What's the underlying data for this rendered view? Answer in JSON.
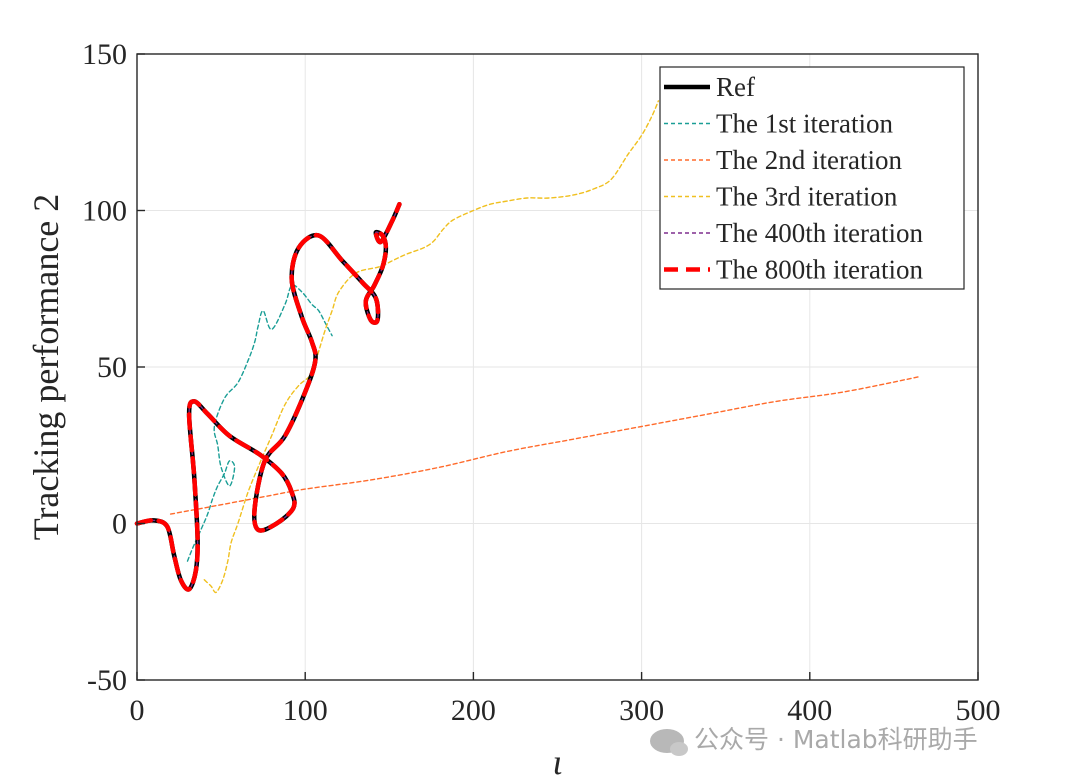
{
  "chart_data": {
    "type": "line",
    "title": "",
    "xlabel": "ι",
    "ylabel": "Tracking performance 2",
    "xlim": [
      0,
      500
    ],
    "ylim": [
      -50,
      150
    ],
    "xticks": [
      "0",
      "100",
      "200",
      "300",
      "400",
      "500"
    ],
    "yticks": [
      "-50",
      "0",
      "50",
      "100",
      "150"
    ],
    "grid": true,
    "legend_position": "top-right",
    "series": [
      {
        "name": "Ref",
        "color": "#000000",
        "style": "solid",
        "x": [
          0,
          10,
          18,
          22,
          26,
          31,
          35,
          36,
          34,
          31,
          34,
          42,
          55,
          73,
          86,
          92,
          93,
          83,
          72,
          70,
          76,
          88,
          100,
          106,
          104,
          98,
          92,
          96,
          108,
          122,
          134,
          142,
          143,
          139,
          136,
          141,
          146,
          148,
          146,
          142,
          145,
          152,
          156
        ],
        "y": [
          0,
          1,
          -1,
          -10,
          -18,
          -21,
          -15,
          -5,
          15,
          35,
          39,
          35,
          28,
          22,
          16,
          10,
          5,
          0,
          -2,
          5,
          20,
          28,
          42,
          52,
          58,
          66,
          78,
          88,
          92,
          84,
          77,
          72,
          65,
          65,
          71,
          76,
          82,
          88,
          92,
          93,
          90,
          97,
          102
        ]
      },
      {
        "name": "The 1st iteration",
        "color": "#1a9e96",
        "style": "dotted",
        "x": [
          30,
          33,
          38,
          42,
          45,
          48,
          52,
          55,
          58,
          55,
          50,
          48,
          46,
          52,
          60,
          66,
          70,
          72,
          75,
          80,
          88,
          92,
          98,
          104,
          108,
          112,
          116
        ],
        "y": [
          -12,
          -8,
          -2,
          3,
          8,
          12,
          16,
          20,
          18,
          12,
          18,
          25,
          31,
          40,
          45,
          52,
          58,
          63,
          68,
          62,
          70,
          76,
          74,
          70,
          68,
          64,
          60
        ]
      },
      {
        "name": "The 2nd iteration",
        "color": "#ff6a2b",
        "style": "dotted",
        "x": [
          20,
          40,
          60,
          80,
          100,
          140,
          180,
          220,
          260,
          300,
          340,
          380,
          420,
          466
        ],
        "y": [
          3,
          5,
          7,
          9,
          11,
          14,
          18,
          23,
          27,
          31,
          35,
          39,
          42,
          47
        ]
      },
      {
        "name": "The 3rd iteration",
        "color": "#f0c020",
        "style": "dotted",
        "x": [
          40,
          44,
          47,
          51,
          54,
          56,
          60,
          66,
          72,
          80,
          88,
          96,
          104,
          108,
          112,
          116,
          120,
          130,
          144,
          152,
          160,
          170,
          176,
          182,
          188,
          200,
          210,
          220,
          232,
          245,
          260,
          272,
          282,
          292,
          300,
          306,
          310
        ],
        "y": [
          -18,
          -20,
          -22,
          -18,
          -12,
          -6,
          0,
          10,
          18,
          28,
          38,
          44,
          48,
          55,
          62,
          68,
          74,
          80,
          82,
          84,
          86,
          88,
          90,
          94,
          97,
          100,
          102,
          103,
          104,
          104,
          105,
          107,
          110,
          118,
          124,
          130,
          135
        ]
      },
      {
        "name": "The 400th iteration",
        "color": "#7e2f8e",
        "style": "dotted",
        "x": [
          0,
          10,
          18,
          22,
          26,
          31,
          35,
          36,
          34,
          31,
          34,
          42,
          55,
          73,
          86,
          92,
          93,
          83,
          72,
          70,
          76,
          88,
          100,
          106,
          104,
          98,
          92,
          96,
          108,
          122,
          134,
          142,
          143,
          139,
          136,
          141,
          146,
          148,
          146,
          142,
          145,
          152,
          156
        ],
        "y": [
          0,
          1,
          -1,
          -10,
          -18,
          -21,
          -15,
          -5,
          15,
          35,
          39,
          35,
          28,
          22,
          16,
          10,
          5,
          0,
          -2,
          5,
          20,
          28,
          42,
          52,
          58,
          66,
          78,
          88,
          92,
          84,
          77,
          72,
          65,
          65,
          71,
          76,
          82,
          88,
          92,
          93,
          90,
          97,
          102
        ]
      },
      {
        "name": "The 800th iteration",
        "color": "#ff0000",
        "style": "dashed",
        "x": [
          0,
          10,
          18,
          22,
          26,
          31,
          35,
          36,
          34,
          31,
          34,
          42,
          55,
          73,
          86,
          92,
          93,
          83,
          72,
          70,
          76,
          88,
          100,
          106,
          104,
          98,
          92,
          96,
          108,
          122,
          134,
          142,
          143,
          139,
          136,
          141,
          146,
          148,
          146,
          142,
          145,
          152,
          156
        ],
        "y": [
          0,
          1,
          -1,
          -10,
          -18,
          -21,
          -15,
          -5,
          15,
          35,
          39,
          35,
          28,
          22,
          16,
          10,
          5,
          0,
          -2,
          5,
          20,
          28,
          42,
          52,
          58,
          66,
          78,
          88,
          92,
          84,
          77,
          72,
          65,
          65,
          71,
          76,
          82,
          88,
          92,
          93,
          90,
          97,
          102
        ]
      }
    ]
  },
  "watermark": {
    "text": "公众号 · Matlab科研助手",
    "icon": "wechat-icon"
  }
}
